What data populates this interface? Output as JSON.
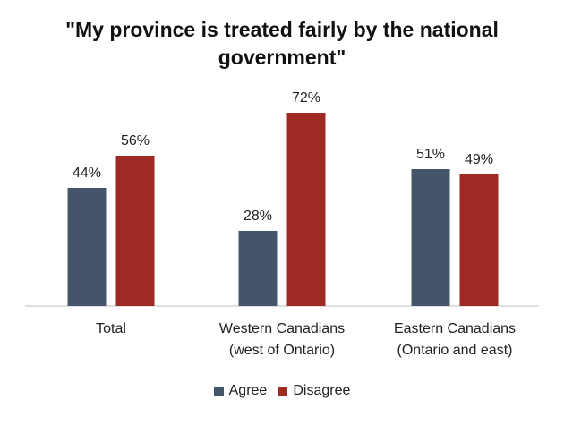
{
  "colors": {
    "agree": "#44546a",
    "disagree": "#9e2a23",
    "axis": "#bfbfbf"
  },
  "chart_data": {
    "type": "bar",
    "title_lines": [
      "\"My province is treated fairly by the national",
      "government\""
    ],
    "categories": [
      {
        "line1": "Total",
        "line2": ""
      },
      {
        "line1": "Western Canadians",
        "line2": "(west of Ontario)"
      },
      {
        "line1": "Eastern Canadians",
        "line2": "(Ontario and east)"
      }
    ],
    "series": [
      {
        "name": "Agree",
        "values": [
          44,
          28,
          51
        ],
        "labels": [
          "44%",
          "28%",
          "51%"
        ]
      },
      {
        "name": "Disagree",
        "values": [
          56,
          72,
          49
        ],
        "labels": [
          "56%",
          "72%",
          "49%"
        ]
      }
    ],
    "ylim": [
      0,
      80
    ],
    "legend_position": "bottom"
  }
}
